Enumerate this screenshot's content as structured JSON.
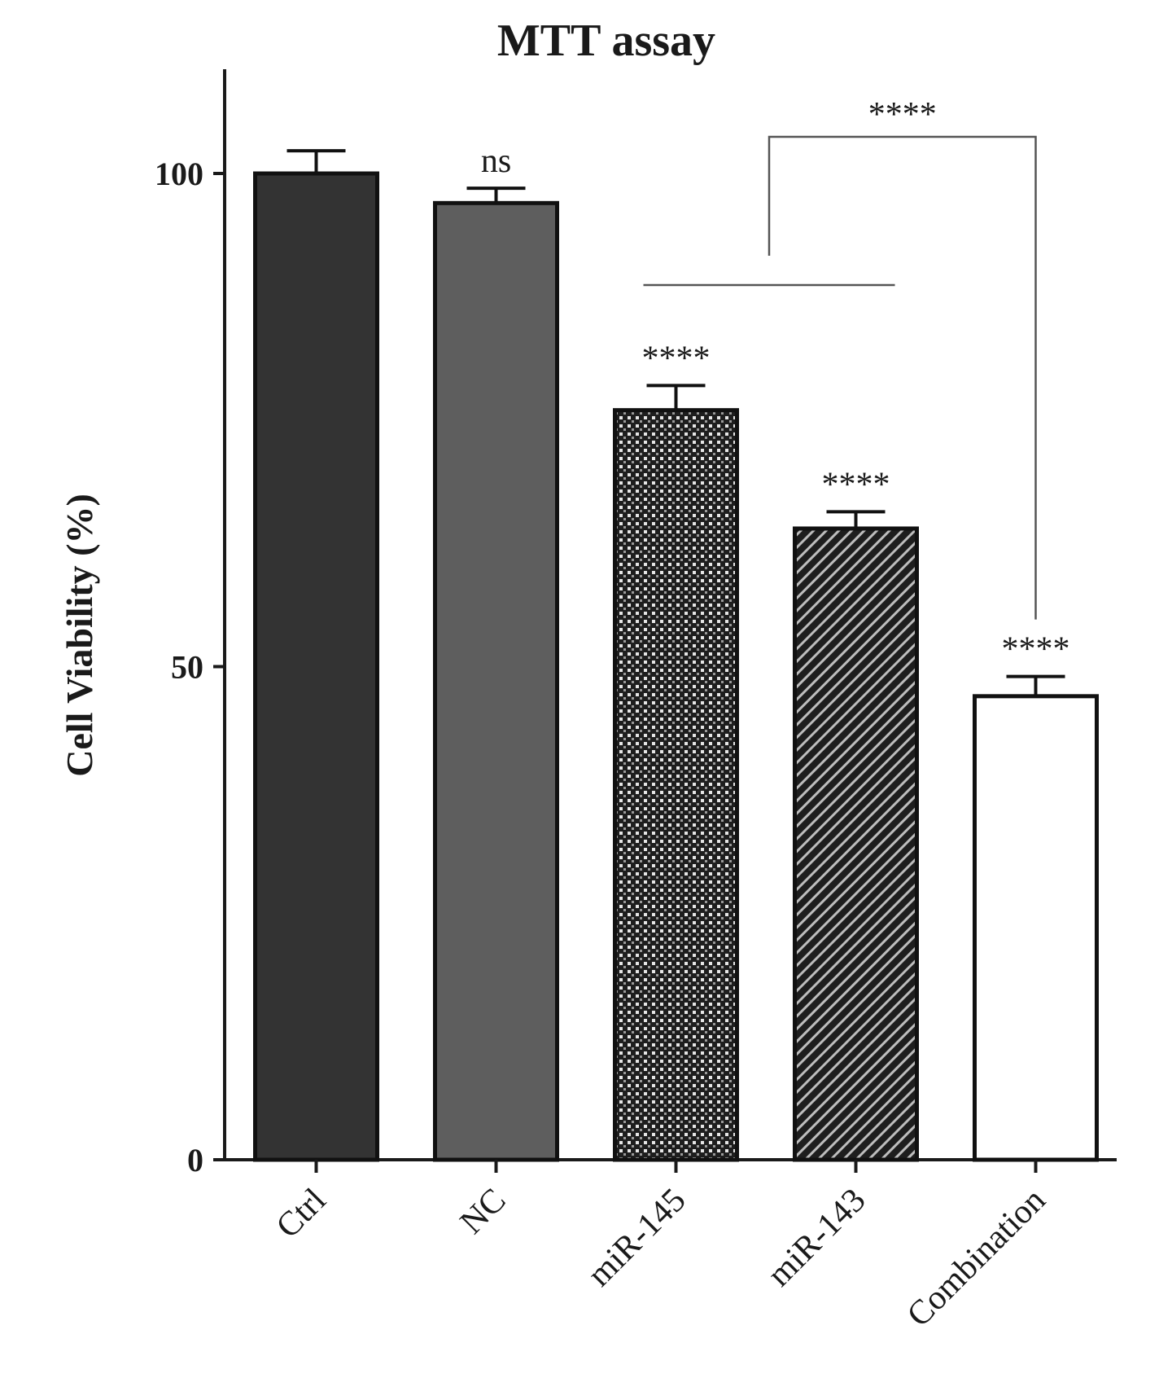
{
  "chart_data": {
    "type": "bar",
    "title": "MTT assay",
    "xlabel": "",
    "ylabel": "Cell Viability (%)",
    "ylim": [
      0,
      110
    ],
    "yticks": [
      0,
      50,
      100
    ],
    "grid": false,
    "legend": "none",
    "categories": [
      "Ctrl",
      "NC",
      "miR-145",
      "miR-143",
      "Combination"
    ],
    "values": [
      100,
      97,
      76,
      64,
      47
    ],
    "errors": [
      2.3,
      1.5,
      2.5,
      1.7,
      2.0
    ],
    "fills": [
      "solid-dark",
      "solid-gray",
      "crosshatch",
      "diagonal-hatch",
      "white"
    ],
    "colors": [
      "#333333",
      "#5e5e5e",
      "#222222",
      "#222222",
      "#ffffff"
    ],
    "significance": [
      "",
      "ns",
      "****",
      "****",
      "****"
    ],
    "bracket": {
      "label": "****",
      "from": [
        "miR-145",
        "miR-143"
      ],
      "to": "Combination"
    }
  }
}
